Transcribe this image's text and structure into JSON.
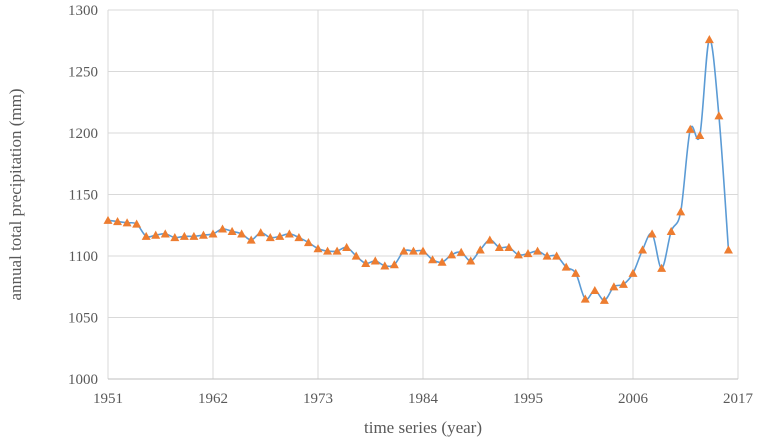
{
  "chart_data": {
    "type": "line",
    "xlabel": "time series (year)",
    "ylabel": "annual total precipitation (mm)",
    "xlim": [
      1951,
      2017
    ],
    "ylim": [
      1000,
      1300
    ],
    "x_ticks": [
      1951,
      1962,
      1973,
      1984,
      1995,
      2006,
      2017
    ],
    "y_ticks": [
      1000,
      1050,
      1100,
      1150,
      1200,
      1250,
      1300
    ],
    "x_tick_labels": [
      "1951",
      "1962",
      "1973",
      "1984",
      "1995",
      "2006",
      "2017"
    ],
    "y_tick_labels": [
      "1000",
      "1050",
      "1100",
      "1150",
      "1200",
      "1250",
      "1300"
    ],
    "grid": true,
    "line_color": "#5b9bd5",
    "marker": "triangle",
    "marker_color": "#ed7d31",
    "series": [
      {
        "x": [
          1951,
          1952,
          1953,
          1954,
          1955,
          1956,
          1957,
          1958,
          1959,
          1960,
          1961,
          1962,
          1963,
          1964,
          1965,
          1966,
          1967,
          1968,
          1969,
          1970,
          1971,
          1972,
          1973,
          1974,
          1975,
          1976,
          1977,
          1978,
          1979,
          1980,
          1981,
          1982,
          1983,
          1984,
          1985,
          1986,
          1987,
          1988,
          1989,
          1990,
          1991,
          1992,
          1993,
          1994,
          1995,
          1996,
          1997,
          1998,
          1999,
          2000,
          2001,
          2002,
          2003,
          2004,
          2005,
          2006,
          2007,
          2008,
          2009,
          2010,
          2011,
          2012,
          2013,
          2014,
          2015,
          2016
        ],
        "y": [
          1129,
          1128,
          1127,
          1126,
          1116,
          1117,
          1118,
          1115,
          1116,
          1116,
          1117,
          1118,
          1122,
          1120,
          1118,
          1113,
          1119,
          1115,
          1116,
          1118,
          1115,
          1111,
          1106,
          1104,
          1104,
          1107,
          1100,
          1094,
          1096,
          1092,
          1093,
          1104,
          1104,
          1104,
          1097,
          1095,
          1101,
          1103,
          1096,
          1105,
          1113,
          1107,
          1107,
          1101,
          1102,
          1104,
          1100,
          1100,
          1091,
          1086,
          1065,
          1072,
          1064,
          1075,
          1077,
          1086,
          1105,
          1118,
          1090,
          1120,
          1136,
          1203,
          1198,
          1276,
          1214,
          1105
        ]
      }
    ]
  }
}
